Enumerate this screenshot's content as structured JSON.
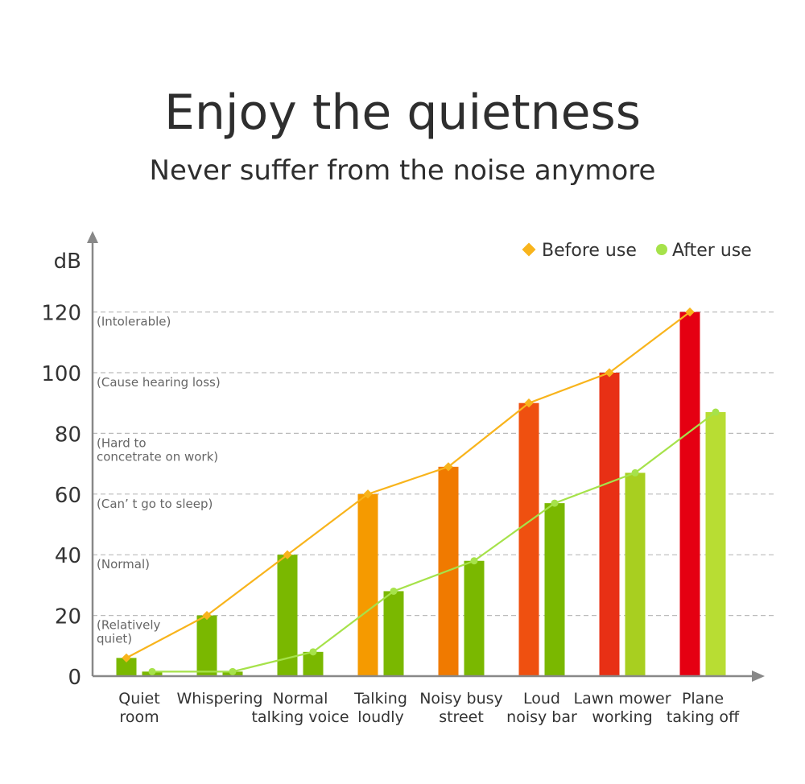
{
  "header": {
    "title": "Enjoy the quietness",
    "subtitle": "Never suffer from the noise anymore"
  },
  "chart_data": {
    "type": "bar",
    "ylabel": "dB",
    "ylim": [
      0,
      120
    ],
    "yticks": [
      0,
      20,
      40,
      60,
      80,
      100,
      120
    ],
    "grid": "horizontal-dashed",
    "legend_position": "top-right",
    "categories": [
      [
        "Quiet",
        "room"
      ],
      [
        "Whispering"
      ],
      [
        "Normal",
        "talking voice"
      ],
      [
        "Talking",
        "loudly"
      ],
      [
        "Noisy busy",
        "street"
      ],
      [
        "Loud",
        "noisy bar"
      ],
      [
        "Lawn mower",
        "working"
      ],
      [
        "Plane",
        "taking off"
      ]
    ],
    "series": [
      {
        "name": "Before use",
        "marker": "diamond",
        "line_color": "#f8b41c",
        "values": [
          6,
          20,
          40,
          60,
          69,
          90,
          100,
          120
        ],
        "bar_colors": [
          "#7ab800",
          "#7ab800",
          "#7ab800",
          "#f59a00",
          "#f07a00",
          "#ef5010",
          "#e83015",
          "#e50012"
        ]
      },
      {
        "name": "After use",
        "marker": "circle",
        "line_color": "#a6e24a",
        "values": [
          1.5,
          1.5,
          8,
          28,
          38,
          57,
          67,
          87
        ],
        "bar_colors": [
          "#7ab800",
          "#7ab800",
          "#7ab800",
          "#7ab800",
          "#7ab800",
          "#7ab800",
          "#a8cf20",
          "#b8dd33"
        ]
      }
    ],
    "annotations": [
      {
        "y": 120,
        "lines": [
          "(Intolerable)"
        ]
      },
      {
        "y": 100,
        "lines": [
          "(Cause hearing loss)"
        ]
      },
      {
        "y": 80,
        "lines": [
          "(Hard to",
          "concetrate on work)"
        ]
      },
      {
        "y": 60,
        "lines": [
          "(Can’ t go to sleep)"
        ]
      },
      {
        "y": 40,
        "lines": [
          "(Normal)"
        ]
      },
      {
        "y": 20,
        "lines": [
          "(Relatively",
          "quiet)"
        ]
      }
    ],
    "colors": {
      "axis": "#888888",
      "grid": "#bbbbbb",
      "legend_before": "#f8b41c",
      "legend_after": "#a6e24a"
    }
  }
}
